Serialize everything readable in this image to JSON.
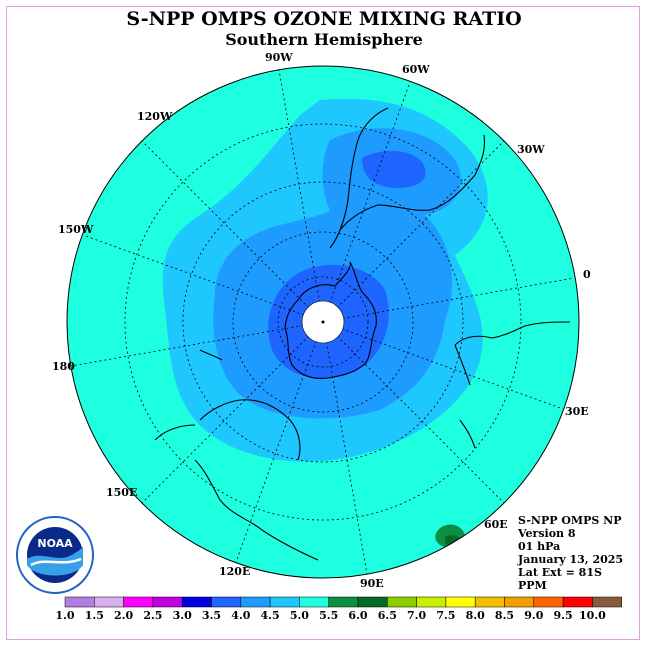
{
  "title": "S-NPP OMPS OZONE MIXING RATIO",
  "subtitle": "Southern Hemisphere",
  "lon_labels": [
    "90W",
    "60W",
    "30W",
    "0",
    "30E",
    "60E",
    "90E",
    "120E",
    "150E",
    "180",
    "150W",
    "120W"
  ],
  "info": {
    "instrument": "S-NPP OMPS NP",
    "version": "Version 8",
    "pressure": "01 hPa",
    "date": "January 13, 2025",
    "lat_ext": "Lat Ext = 81S",
    "units": "PPM"
  },
  "colorbar": {
    "ticks": [
      "1.0",
      "1.5",
      "2.0",
      "2.5",
      "3.0",
      "3.5",
      "4.0",
      "4.5",
      "5.0",
      "5.5",
      "6.0",
      "6.5",
      "7.0",
      "7.5",
      "8.0",
      "8.5",
      "9.0",
      "9.5",
      "10.0"
    ],
    "colors": [
      "#b07fe0",
      "#d8b0f0",
      "#ff00ff",
      "#c000e0",
      "#0000e0",
      "#1e64ff",
      "#1e9bff",
      "#1ec8ff",
      "#1effe0",
      "#0a9040",
      "#006a28",
      "#8ad000",
      "#c8f000",
      "#ffff00",
      "#f0c000",
      "#f0a000",
      "#ff6400",
      "#ff0000",
      "#8b5a3c"
    ]
  },
  "logo": {
    "text": "NOAA",
    "ring_text": "NATIONAL OCEANIC AND ATMOSPHERIC ADMINISTRATION · U.S. DEPARTMENT OF COMMERCE"
  }
}
